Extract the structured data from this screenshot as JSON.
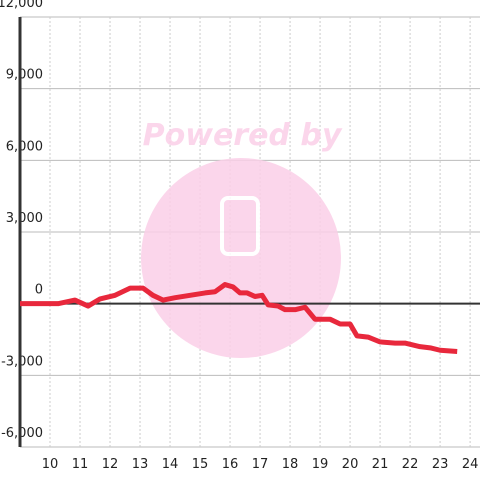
{
  "chart_data": {
    "type": "line",
    "watermark": "Powered by",
    "x": [
      9.0,
      10.27,
      10.83,
      11.27,
      11.67,
      12.17,
      12.67,
      13.1,
      13.43,
      13.77,
      14.17,
      14.67,
      15.17,
      15.5,
      15.83,
      16.1,
      16.33,
      16.57,
      16.83,
      17.07,
      17.27,
      17.6,
      17.83,
      18.17,
      18.5,
      18.83,
      19.33,
      19.67,
      20.0,
      20.23,
      20.6,
      21.0,
      21.5,
      21.83,
      22.33,
      22.67,
      23.0,
      23.57
    ],
    "series": [
      {
        "color": "#e8283c",
        "values": [
          0,
          0,
          150,
          -100,
          200,
          350,
          650,
          650,
          350,
          150,
          250,
          350,
          450,
          500,
          800,
          700,
          450,
          450,
          300,
          350,
          -50,
          -100,
          -250,
          -250,
          -150,
          -650,
          -650,
          -850,
          -850,
          -1350,
          -1400,
          -1600,
          -1650,
          -1650,
          -1800,
          -1850,
          -1950,
          -2000
        ]
      }
    ],
    "xlim": [
      9,
      24.33
    ],
    "xticks": [
      10,
      11,
      12,
      13,
      14,
      15,
      16,
      17,
      18,
      19,
      20,
      21,
      22,
      23,
      24
    ],
    "ylim": [
      -6000,
      12000
    ],
    "yticks": [
      {
        "value": -6000,
        "label": "-6,000"
      },
      {
        "value": -3000,
        "label": "-3,000"
      },
      0,
      {
        "value": 3000,
        "label": "3,000"
      },
      {
        "value": 6000,
        "label": "6,000"
      },
      {
        "value": 9000,
        "label": "9,000"
      },
      {
        "value": 12000,
        "label": "12,000"
      }
    ],
    "grid": true
  }
}
